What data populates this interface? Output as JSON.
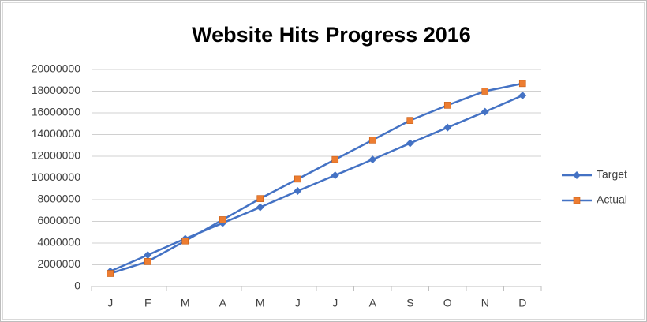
{
  "chart_data": {
    "type": "line",
    "title": "Website Hits Progress 2016",
    "categories": [
      "J",
      "F",
      "M",
      "A",
      "M",
      "J",
      "J",
      "A",
      "S",
      "O",
      "N",
      "D"
    ],
    "series": [
      {
        "name": "Target",
        "color": "#4472c4",
        "marker": "diamond",
        "marker_color": "#4472c4",
        "values": [
          1400000,
          2900000,
          4400000,
          5850000,
          7300000,
          8800000,
          10250000,
          11700000,
          13200000,
          14650000,
          16100000,
          17600000
        ]
      },
      {
        "name": "Actual",
        "color": "#4472c4",
        "marker": "square",
        "marker_color": "#ed7d31",
        "values": [
          1200000,
          2300000,
          4200000,
          6150000,
          8100000,
          9900000,
          11700000,
          13500000,
          15300000,
          16700000,
          18000000,
          18700000
        ]
      }
    ],
    "ylim": [
      0,
      20000000
    ],
    "yticks": [
      0,
      2000000,
      4000000,
      6000000,
      8000000,
      10000000,
      12000000,
      14000000,
      16000000,
      18000000,
      20000000
    ],
    "grid": true,
    "legend": "right"
  }
}
